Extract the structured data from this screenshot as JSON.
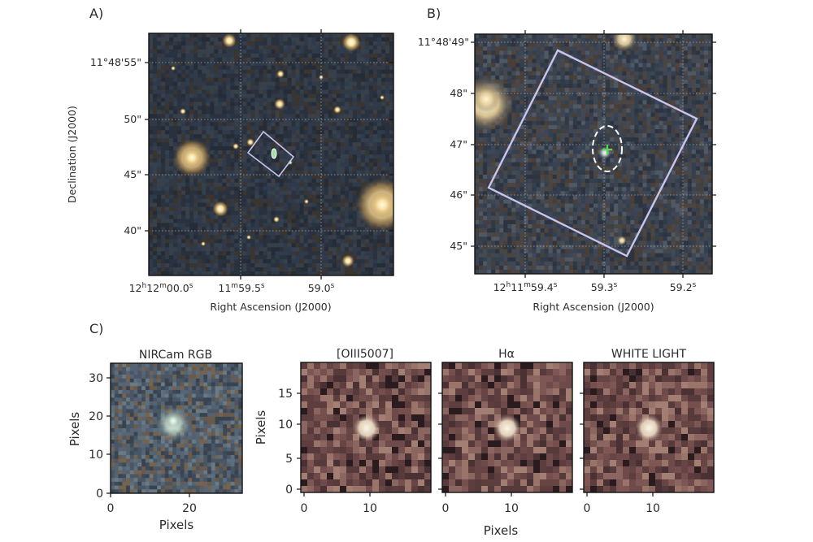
{
  "panel_a": {
    "letter": "A)",
    "ylabel": "Declination (J2000)",
    "xlabel": "Right Ascension (J2000)",
    "yticks": [
      "11°48'55\"",
      "50\"",
      "45\"",
      "40\""
    ],
    "xticks": {
      "t1": {
        "h": "12",
        "hs": "h",
        "m": "12",
        "ms": "m",
        "s": "00.0",
        "ss": "s"
      },
      "t2": {
        "m": "11",
        "ms": "m",
        "s": "59.5",
        "ss": "s"
      },
      "t3": {
        "s": "59.0",
        "ss": "s"
      }
    }
  },
  "panel_b": {
    "letter": "B)",
    "xlabel": "Right Ascension (J2000)",
    "yticks": [
      "11°48'49\"",
      "48\"",
      "47\"",
      "46\"",
      "45\""
    ],
    "xticks": {
      "t1": {
        "h": "12",
        "hs": "h",
        "m": "11",
        "ms": "m",
        "s": "59.4",
        "ss": "s"
      },
      "t2": {
        "s": "59.3",
        "ss": "s"
      },
      "t3": {
        "s": "59.2",
        "ss": "s"
      }
    }
  },
  "panel_c": {
    "letter": "C)",
    "rgb": {
      "title": "NIRCam RGB",
      "xlabel": "Pixels",
      "ylabel": "Pixels",
      "xticks": [
        "0",
        "20"
      ],
      "yticks": [
        "30",
        "20",
        "10",
        "0"
      ]
    },
    "ifu": {
      "titles": [
        "[OIII5007]",
        "Hα",
        "WHITE LIGHT"
      ],
      "xlabel": "Pixels",
      "ylabel": "Pixels",
      "xticks": [
        "0",
        "10"
      ],
      "yticks": [
        "15",
        "10",
        "5",
        "0"
      ]
    }
  },
  "colors": {
    "overlay_box": "#c9c4f0",
    "marker_cross": "#5fd35f",
    "ellipse": "#ffffff",
    "ifu_map_base": "#7a4a4a"
  }
}
